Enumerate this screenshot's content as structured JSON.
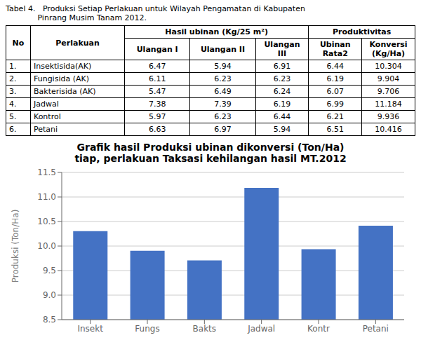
{
  "chart_data": [
    {
      "type": "table",
      "title": "Tabel 4.   Produksi Setiap Perlakuan untuk Wilayah Pengamatan di Kabupaten\n             Pinrang Musim Tanam 2012.",
      "column_groups": [
        "Hasil ubinan (Kg/25 m²)",
        "Produktivitas"
      ],
      "columns": [
        "No",
        "Perlakuan",
        "Ulangan I",
        "Ulangan II",
        "Ulangan III",
        "Ubinan\nRata2",
        "Konversi\n(Kg/Ha)"
      ],
      "rows": [
        [
          "1.",
          "Insektisida(AK)",
          "6.47",
          "5.94",
          "6.91",
          "6.44",
          "10.304"
        ],
        [
          "2.",
          "Fungisida (AK)",
          "6.11",
          "6.23",
          "6.23",
          "6.19",
          "9.904"
        ],
        [
          "3.",
          "Bakterisida (AK)",
          "5.47",
          "6.49",
          "6.24",
          "6.07",
          "9.706"
        ],
        [
          "4.",
          "Jadwal",
          "7.38",
          "7.39",
          "6.19",
          "6.99",
          "11.184"
        ],
        [
          "5.",
          "Kontrol",
          "5.97",
          "6.23",
          "6.44",
          "6.21",
          "9.936"
        ],
        [
          "6.",
          "Petani",
          "6.63",
          "6.97",
          "5.94",
          "6.51",
          "10.416"
        ]
      ]
    },
    {
      "type": "bar",
      "title": "Grafik hasil Produksi ubinan dikonversi (Ton/Ha)\ntiap, perlakuan Taksasi kehilangan hasil MT.2012",
      "ylabel": "Produksi (Ton/Ha)",
      "categories": [
        "Insekt",
        "Fungs",
        "Bakts",
        "Jadwal",
        "Kontr",
        "Petani"
      ],
      "values": [
        10.304,
        9.904,
        9.706,
        11.184,
        9.936,
        10.416
      ],
      "color": "#4472C4",
      "ylim": [
        8.5,
        11.5
      ],
      "yticks": [
        8.5,
        {
          "value": 9,
          "label": "9.0"
        },
        9.5,
        {
          "value": 10,
          "label": "10.0"
        },
        10.5,
        {
          "value": 11,
          "label": "11.0"
        },
        11.5
      ],
      "grid": true
    }
  ]
}
